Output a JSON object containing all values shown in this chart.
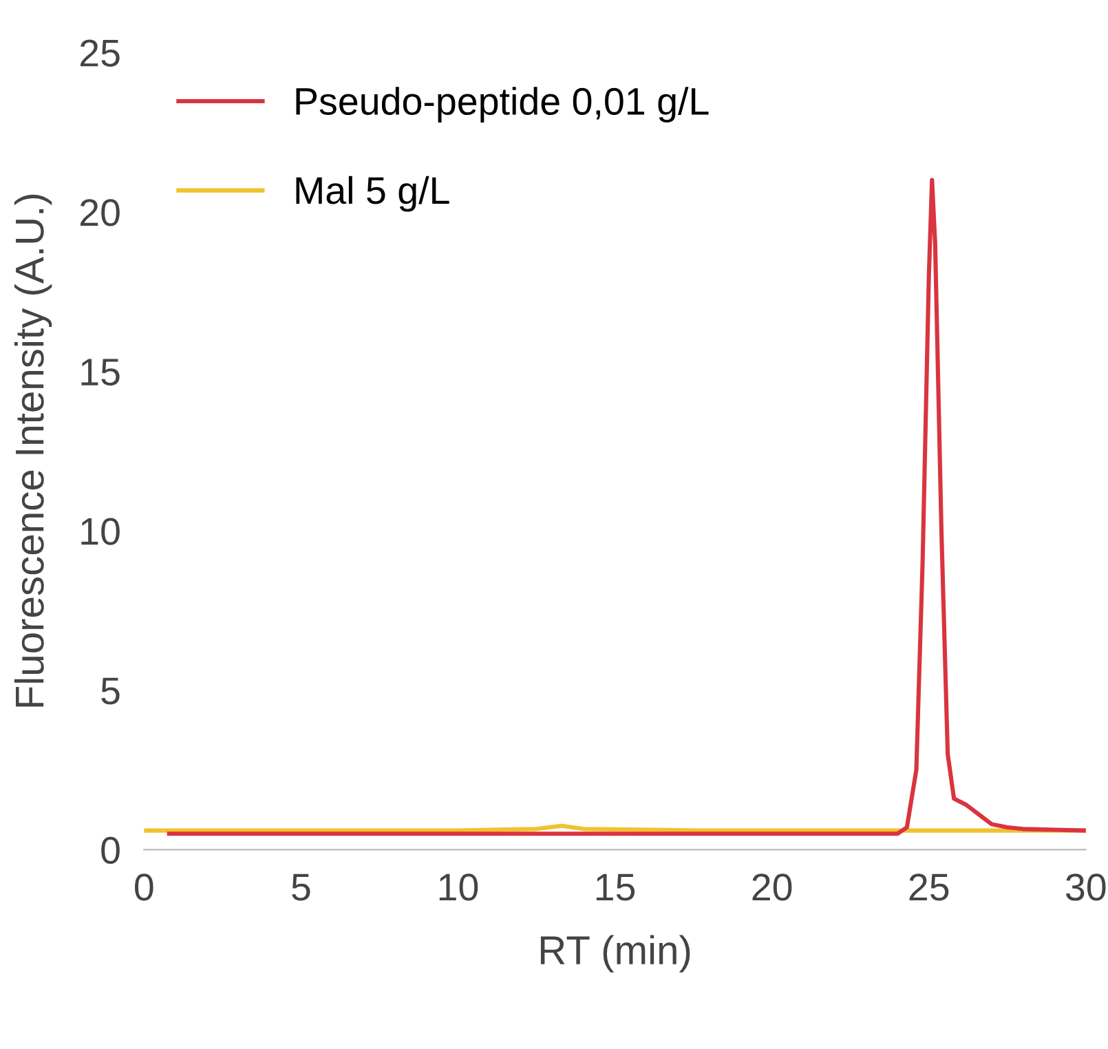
{
  "chart_data": {
    "type": "line",
    "xlabel": "RT (min)",
    "ylabel": "Fluorescence Intensity (A.U.)",
    "xlim": [
      0,
      30
    ],
    "xticks": [
      0,
      5,
      10,
      15,
      20,
      25,
      30
    ],
    "ylim": [
      0,
      25
    ],
    "yticks": [
      0,
      5,
      10,
      15,
      20,
      25
    ],
    "grid": false,
    "legend": "top left",
    "marker": "none",
    "line_style": "solid",
    "series": [
      {
        "name": "Mal 5 g/L",
        "color": "#f2c12e",
        "x": [
          0,
          5,
          10,
          12.5,
          13.3,
          14,
          18,
          22,
          25,
          27,
          30
        ],
        "values": [
          0.6,
          0.6,
          0.6,
          0.65,
          0.75,
          0.65,
          0.6,
          0.6,
          0.6,
          0.6,
          0.6
        ]
      },
      {
        "name": "Pseudo-peptide 0,01 g/L",
        "color": "#d9343f",
        "x": [
          0.8,
          5,
          10,
          15,
          20,
          24,
          24.3,
          24.6,
          24.8,
          25.0,
          25.1,
          25.2,
          25.4,
          25.6,
          25.8,
          26.2,
          26.6,
          27.0,
          27.5,
          28,
          30
        ],
        "values": [
          0.5,
          0.5,
          0.5,
          0.5,
          0.5,
          0.5,
          0.7,
          2.5,
          9,
          18,
          21,
          19,
          10,
          3,
          1.6,
          1.4,
          1.1,
          0.8,
          0.7,
          0.65,
          0.6
        ]
      }
    ]
  }
}
